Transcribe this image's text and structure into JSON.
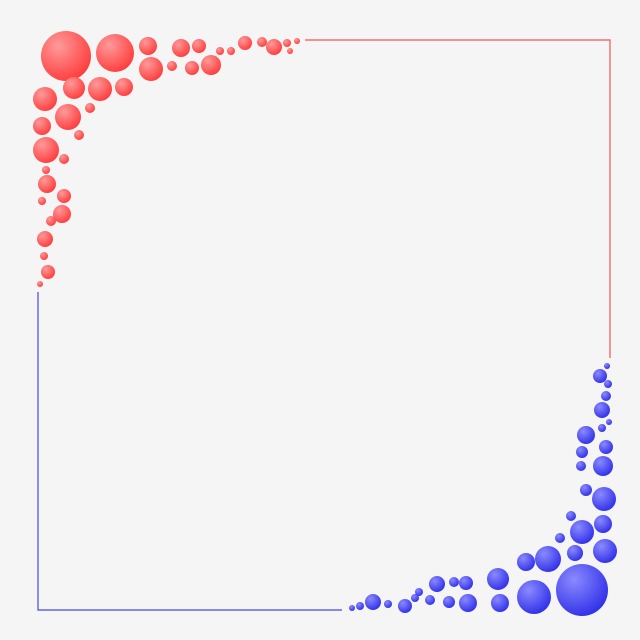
{
  "frame": {
    "background_color": "#f5f5f5",
    "red_accent": "#ff4e4e",
    "red_light": "#ff9a9a",
    "blue_accent": "#3b3bf0",
    "blue_light": "#8a8aff",
    "red_line_color": "#f2564f",
    "blue_line_color": "#4747e6",
    "decoration": "bubble-corner-frame"
  }
}
